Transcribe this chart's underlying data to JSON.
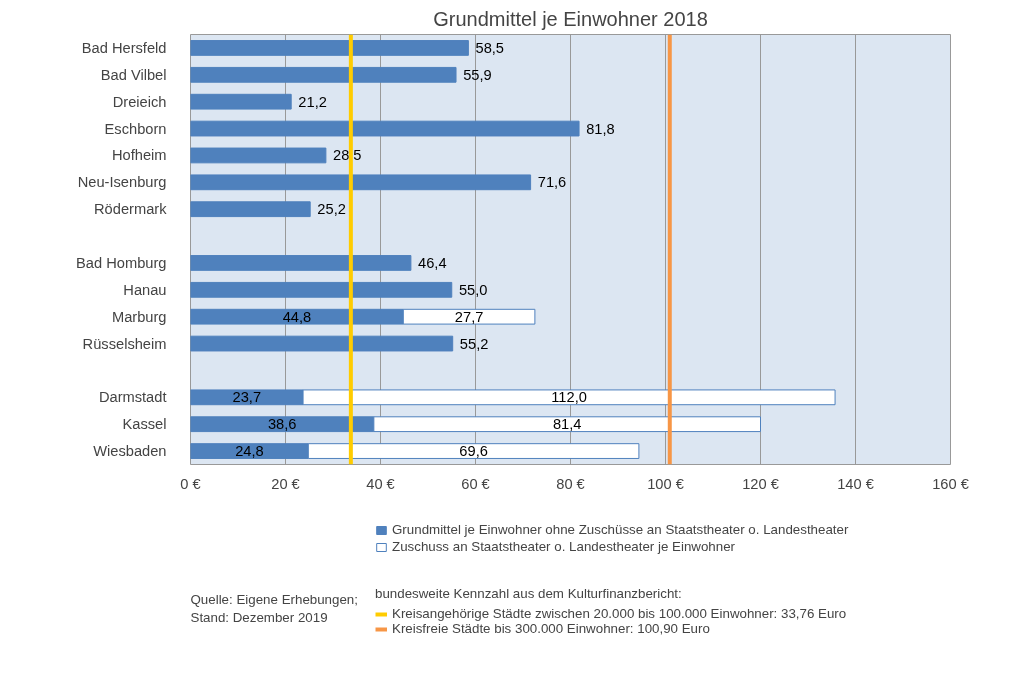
{
  "chart_data": {
    "type": "bar",
    "orientation": "horizontal",
    "stacked": true,
    "title": "Grundmittel je Einwohner 2018",
    "categories": [
      "Bad Hersfeld",
      "Bad Vilbel",
      "Dreieich",
      "Eschborn",
      "Hofheim",
      "Neu-Isenburg",
      "Rödermark",
      null,
      "Bad Homburg",
      "Hanau",
      "Marburg",
      "Rüsselsheim",
      null,
      "Darmstadt",
      "Kassel",
      "Wiesbaden"
    ],
    "series": [
      {
        "name": "Grundmittel je Einwohner ohne Zuschüsse an Staatstheater o. Landestheater",
        "color": "#4f81bd",
        "values": [
          58.5,
          55.9,
          21.2,
          81.8,
          28.5,
          71.6,
          25.2,
          null,
          46.4,
          55.0,
          44.8,
          55.2,
          null,
          23.7,
          38.6,
          24.8
        ],
        "value_labels": [
          "58,5",
          "55,9",
          "21,2",
          "81,8",
          "28,5",
          "71,6",
          "25,2",
          null,
          "46,4",
          "55,0",
          "44,8",
          "55,2",
          null,
          "23,7",
          "38,6",
          "24,8"
        ]
      },
      {
        "name": "Zuschuss an Staatstheater o. Landestheater je Einwohner",
        "color": "#ffffff",
        "values": [
          null,
          null,
          null,
          null,
          null,
          null,
          null,
          null,
          null,
          null,
          27.7,
          null,
          null,
          112.0,
          81.4,
          69.6
        ],
        "value_labels": [
          null,
          null,
          null,
          null,
          null,
          null,
          null,
          null,
          null,
          null,
          "27,7",
          null,
          null,
          "112,0",
          "81,4",
          "69,6"
        ]
      }
    ],
    "xlim": [
      0,
      160
    ],
    "xticks": [
      {
        "value": 0,
        "label": "0 €"
      },
      {
        "value": 20,
        "label": "20 €"
      },
      {
        "value": 40,
        "label": "40 €"
      },
      {
        "value": 60,
        "label": "60 €"
      },
      {
        "value": 80,
        "label": "80 €"
      },
      {
        "value": 100,
        "label": "100 €"
      },
      {
        "value": 120,
        "label": "120 €"
      },
      {
        "value": 140,
        "label": "140 €"
      },
      {
        "value": 160,
        "label": "160 €"
      }
    ],
    "grid": "x",
    "legend": "bottom",
    "legend_title": "bundesweite Kennzahl aus dem Kulturfinanzbericht:",
    "ref_lines": [
      {
        "axis": "x",
        "value": 33.76,
        "label": "Kreisangehörige Städte zwischen 20.000 bis 100.000 Einwohner: 33,76 Euro",
        "color": "#ffcc00"
      },
      {
        "axis": "x",
        "value": 100.9,
        "label": "Kreisfreie Städte bis 300.000 Einwohner: 100,90 Euro",
        "color": "#f79646"
      }
    ],
    "annotations": [
      "Quelle: Eigene Erhebungen;\nStand: Dezember 2019"
    ]
  }
}
